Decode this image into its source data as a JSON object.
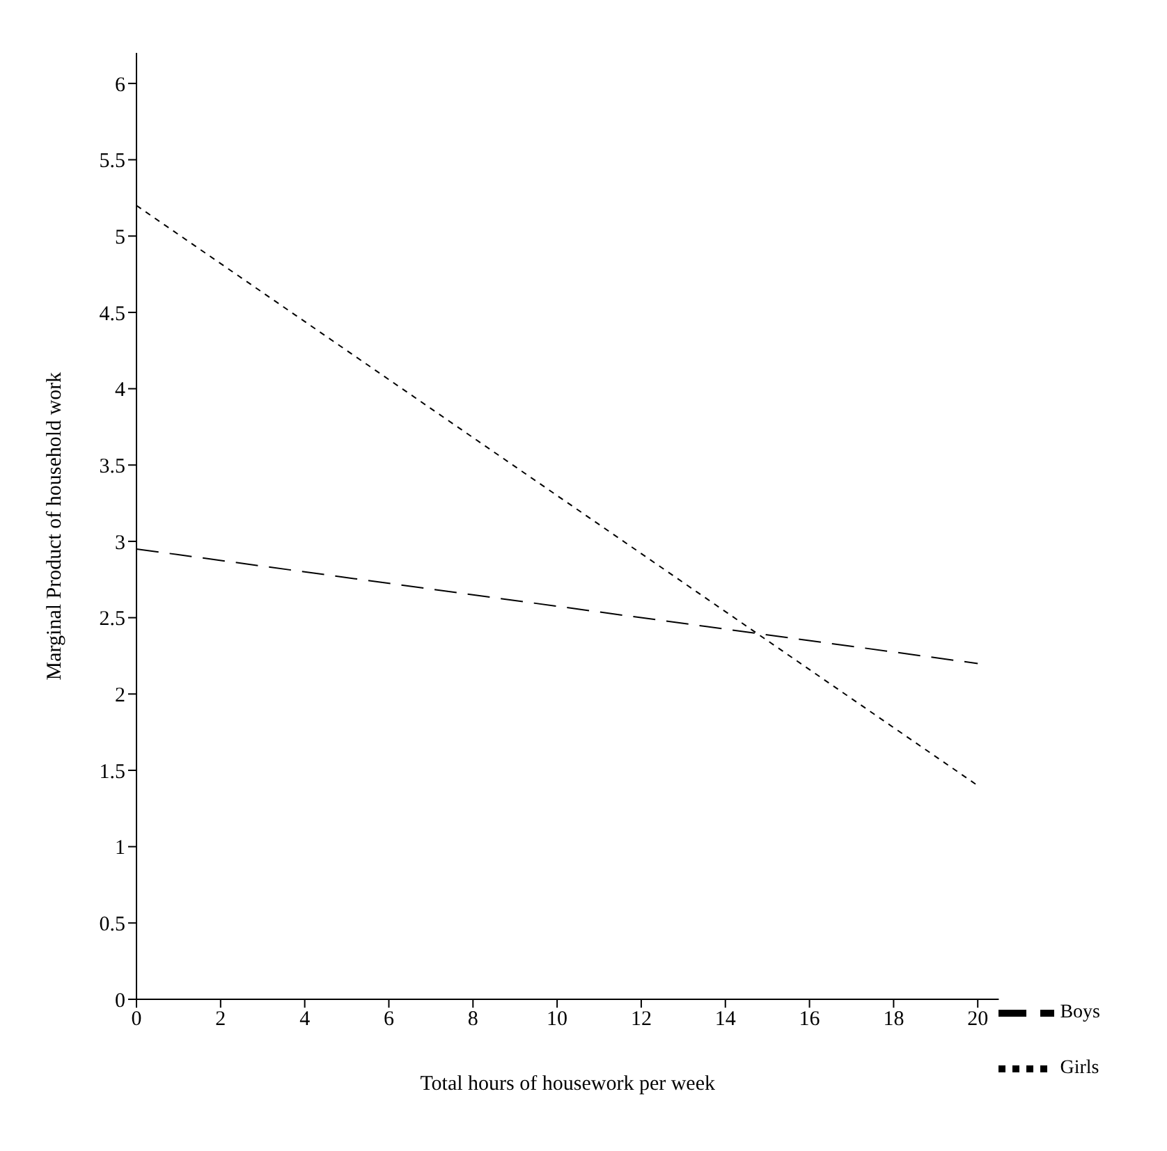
{
  "chart_data": {
    "type": "line",
    "xlabel": "Total hours of housework per week",
    "ylabel": "Marginal Product of household work",
    "x": [
      0,
      20
    ],
    "series": [
      {
        "name": "Boys",
        "color": "#000000",
        "values": [
          2.95,
          2.2
        ],
        "line_style": "dashed"
      },
      {
        "name": "Girls",
        "color": "#000000",
        "values": [
          5.2,
          1.4
        ],
        "line_style": "dotted"
      }
    ],
    "xlim": [
      0,
      20.5
    ],
    "xticks": [
      0,
      2,
      4,
      6,
      8,
      10,
      12,
      14,
      16,
      18,
      20
    ],
    "ylim": [
      0,
      6.2
    ],
    "yticks": [
      0,
      0.5,
      1,
      1.5,
      2,
      2.5,
      3,
      3.5,
      4,
      4.5,
      5,
      5.5,
      6
    ],
    "grid": false,
    "legend": "bottom right",
    "marker": "none"
  }
}
